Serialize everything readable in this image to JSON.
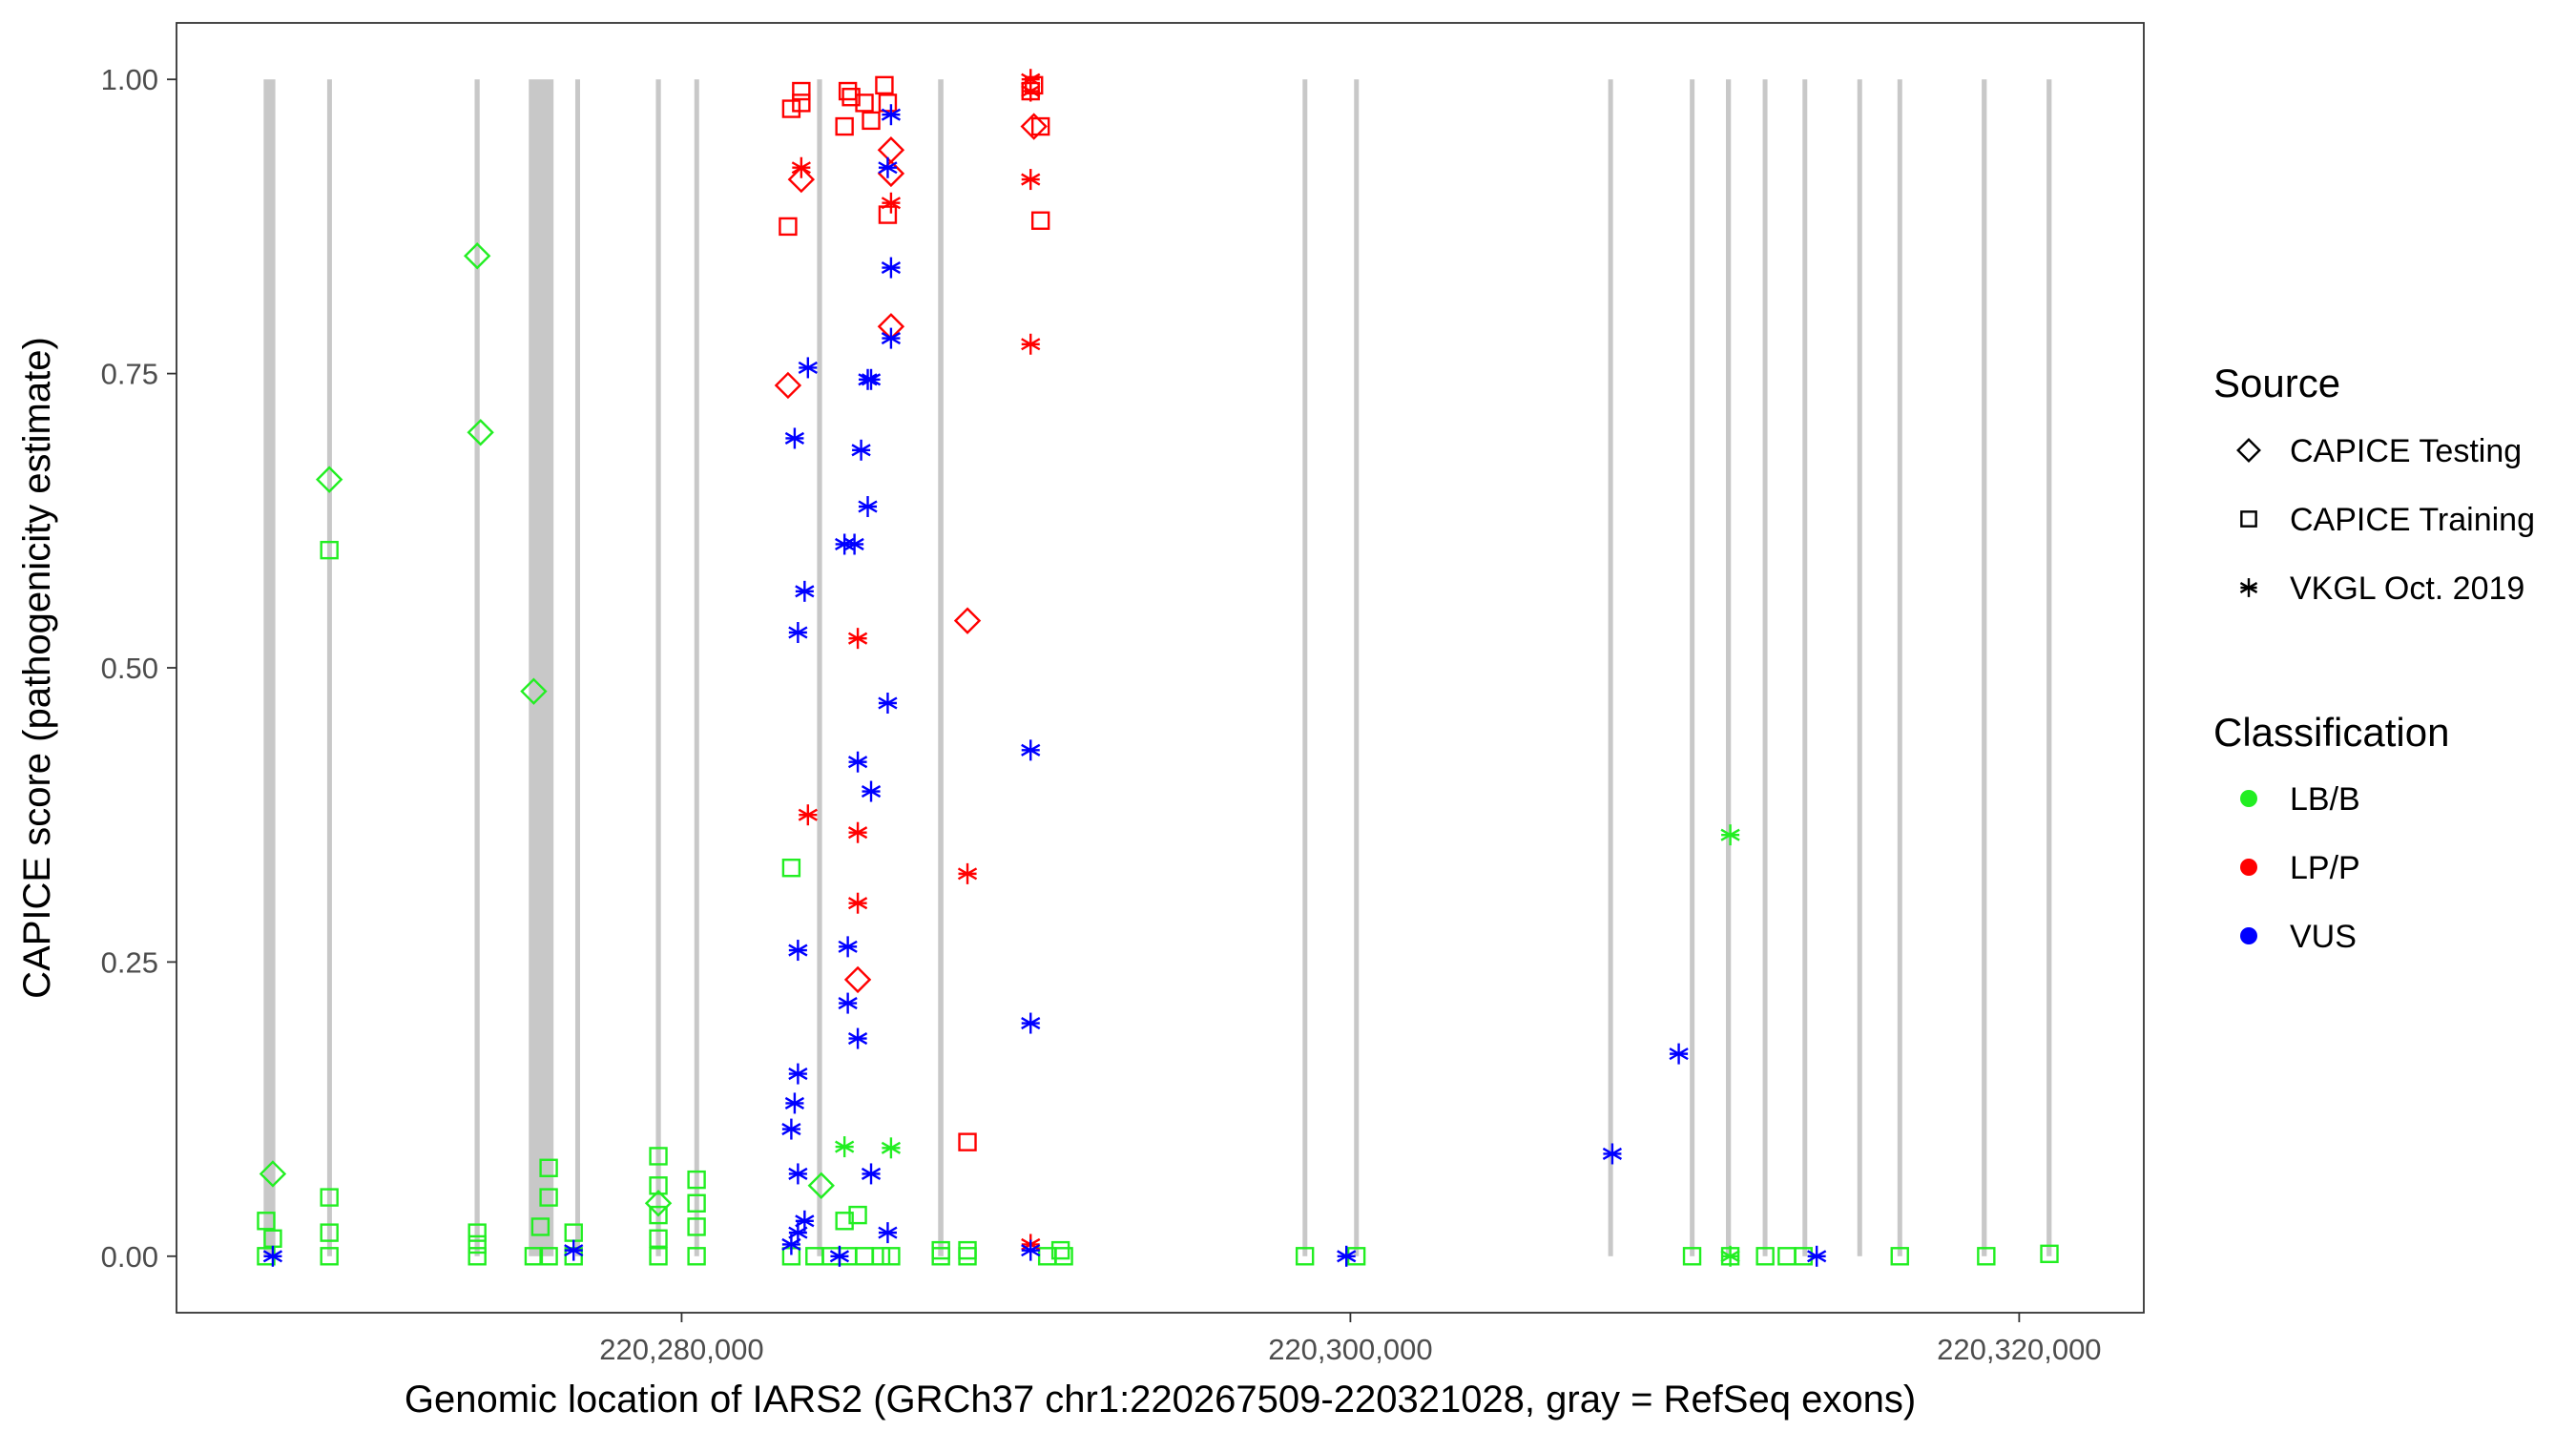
{
  "chart_data": {
    "type": "scatter",
    "xlabel": "Genomic location of IARS2 (GRCh37 chr1:220267509-220321028, gray = RefSeq exons)",
    "ylabel": "CAPICE score (pathogenicity estimate)",
    "xlim": [
      220264894,
      220323727
    ],
    "ylim": [
      -0.048,
      1.048
    ],
    "x_ticks": [
      220280000,
      220300000,
      220320000
    ],
    "x_tick_labels": [
      "220,280,000",
      "220,300,000",
      "220,320,000"
    ],
    "y_ticks": [
      0,
      0.25,
      0.5,
      0.75,
      1
    ],
    "y_tick_labels": [
      "0.00",
      "0.25",
      "0.50",
      "0.75",
      "1.00"
    ],
    "grid": false,
    "legend_placement": "right",
    "legend": {
      "source_title": "Source",
      "sources": [
        "CAPICE Testing",
        "CAPICE Training",
        "VKGL Oct. 2019"
      ],
      "source_shapes": [
        "diamond",
        "square",
        "asterisk"
      ],
      "class_title": "Classification",
      "classes": [
        "LB/B",
        "LP/P",
        "VUS"
      ],
      "class_colors": [
        "#22ee22",
        "#ff0000",
        "#0000ff"
      ]
    },
    "exon_color": "#c8c8c8",
    "exons": [
      [
        220267500,
        220267850
      ],
      [
        220269400,
        220269530
      ],
      [
        220273810,
        220273960
      ],
      [
        220275430,
        220276170
      ],
      [
        220276820,
        220276920
      ],
      [
        220279230,
        220279380
      ],
      [
        220280380,
        220280510
      ],
      [
        220284050,
        220284200
      ],
      [
        220287670,
        220287830
      ],
      [
        220298570,
        220298700
      ],
      [
        220300110,
        220300240
      ],
      [
        220307710,
        220307840
      ],
      [
        220310150,
        220310280
      ],
      [
        220311230,
        220311380
      ],
      [
        220312330,
        220312460
      ],
      [
        220313520,
        220313650
      ],
      [
        220315160,
        220315290
      ],
      [
        220316360,
        220316490
      ],
      [
        220318880,
        220319030
      ],
      [
        220320820,
        220320970
      ]
    ],
    "points_format": [
      "position",
      "score",
      "source_index",
      "class_index"
    ],
    "points": [
      [
        220267774,
        0.07,
        0,
        0
      ],
      [
        220269464,
        0.66,
        0,
        0
      ],
      [
        220273887,
        0.85,
        0,
        0
      ],
      [
        220273986,
        0.7,
        0,
        0
      ],
      [
        220275577,
        0.48,
        0,
        0
      ],
      [
        220279304,
        0.045,
        0,
        0
      ],
      [
        220284175,
        0.06,
        0,
        0
      ],
      [
        220283181,
        0.74,
        0,
        1
      ],
      [
        220283578,
        0.915,
        0,
        1
      ],
      [
        220286262,
        0.94,
        0,
        1
      ],
      [
        220286262,
        0.92,
        0,
        1
      ],
      [
        220286262,
        0.79,
        0,
        1
      ],
      [
        220285268,
        0.235,
        0,
        1
      ],
      [
        220288548,
        0.54,
        0,
        1
      ],
      [
        220290536,
        0.96,
        0,
        1
      ],
      [
        220267575,
        0.03,
        1,
        0
      ],
      [
        220267774,
        0.015,
        1,
        0
      ],
      [
        220269464,
        0.6,
        1,
        0
      ],
      [
        220269464,
        0.05,
        1,
        0
      ],
      [
        220269464,
        0.02,
        1,
        0
      ],
      [
        220273887,
        0.02,
        1,
        0
      ],
      [
        220273887,
        0.01,
        1,
        0
      ],
      [
        220276024,
        0.075,
        1,
        0
      ],
      [
        220276024,
        0.05,
        1,
        0
      ],
      [
        220275776,
        0.025,
        1,
        0
      ],
      [
        220276770,
        0.02,
        1,
        0
      ],
      [
        220279304,
        0.085,
        1,
        0
      ],
      [
        220279304,
        0.06,
        1,
        0
      ],
      [
        220279304,
        0.035,
        1,
        0
      ],
      [
        220279304,
        0.015,
        1,
        0
      ],
      [
        220280447,
        0.065,
        1,
        0
      ],
      [
        220280447,
        0.045,
        1,
        0
      ],
      [
        220280447,
        0.025,
        1,
        0
      ],
      [
        220283280,
        0.33,
        1,
        0
      ],
      [
        220284871,
        0.03,
        1,
        0
      ],
      [
        220285268,
        0.035,
        1,
        0
      ],
      [
        220287753,
        0.005,
        1,
        0
      ],
      [
        220288548,
        0.005,
        1,
        0
      ],
      [
        220291332,
        0.005,
        1,
        0
      ],
      [
        220298638,
        0,
        1,
        0
      ],
      [
        220300178,
        0,
        1,
        0
      ],
      [
        220310218,
        0,
        1,
        0
      ],
      [
        220312404,
        0,
        1,
        0
      ],
      [
        220313051,
        0,
        1,
        0
      ],
      [
        220316430,
        0,
        1,
        0
      ],
      [
        220319015,
        0,
        1,
        0
      ],
      [
        220320903,
        0.002,
        1,
        0
      ],
      [
        220267575,
        0,
        1,
        0
      ],
      [
        220269464,
        0,
        1,
        0
      ],
      [
        220273887,
        0,
        1,
        0
      ],
      [
        220275577,
        0,
        1,
        0
      ],
      [
        220276024,
        0,
        1,
        0
      ],
      [
        220276770,
        0,
        1,
        0
      ],
      [
        220279304,
        0,
        1,
        0
      ],
      [
        220280447,
        0,
        1,
        0
      ],
      [
        220283280,
        0,
        1,
        0
      ],
      [
        220283976,
        0,
        1,
        0
      ],
      [
        220284473,
        0,
        1,
        0
      ],
      [
        220284970,
        0,
        1,
        0
      ],
      [
        220285467,
        0,
        1,
        0
      ],
      [
        220285964,
        0,
        1,
        0
      ],
      [
        220286262,
        0,
        1,
        0
      ],
      [
        220287753,
        0,
        1,
        0
      ],
      [
        220288548,
        0,
        1,
        0
      ],
      [
        220290934,
        0,
        1,
        0
      ],
      [
        220291431,
        0,
        1,
        0
      ],
      [
        220311361,
        0,
        1,
        0
      ],
      [
        220313548,
        0,
        1,
        0
      ],
      [
        220283280,
        0.975,
        1,
        1
      ],
      [
        220283181,
        0.875,
        1,
        1
      ],
      [
        220283578,
        0.98,
        1,
        1
      ],
      [
        220283578,
        0.99,
        1,
        1
      ],
      [
        220284871,
        0.96,
        1,
        1
      ],
      [
        220284970,
        0.99,
        1,
        1
      ],
      [
        220285069,
        0.985,
        1,
        1
      ],
      [
        220285467,
        0.98,
        1,
        1
      ],
      [
        220285666,
        0.965,
        1,
        1
      ],
      [
        220286063,
        0.995,
        1,
        1
      ],
      [
        220286163,
        0.98,
        1,
        1
      ],
      [
        220286163,
        0.885,
        1,
        1
      ],
      [
        220288548,
        0.097,
        1,
        1
      ],
      [
        220290437,
        0.99,
        1,
        1
      ],
      [
        220290536,
        0.995,
        1,
        1
      ],
      [
        220290735,
        0.96,
        1,
        1
      ],
      [
        220290735,
        0.88,
        1,
        1
      ],
      [
        220283578,
        0.925,
        2,
        1
      ],
      [
        220283777,
        0.375,
        2,
        1
      ],
      [
        220285268,
        0.525,
        2,
        1
      ],
      [
        220285268,
        0.36,
        2,
        1
      ],
      [
        220285268,
        0.3,
        2,
        1
      ],
      [
        220286262,
        0.895,
        2,
        1
      ],
      [
        220288548,
        0.325,
        2,
        1
      ],
      [
        220290437,
        1.0,
        2,
        1
      ],
      [
        220290437,
        0.99,
        2,
        1
      ],
      [
        220290437,
        0.915,
        2,
        1
      ],
      [
        220290437,
        0.775,
        2,
        1
      ],
      [
        220290437,
        0.01,
        2,
        1
      ],
      [
        220267774,
        0,
        2,
        2
      ],
      [
        220276770,
        0.005,
        2,
        2
      ],
      [
        220283380,
        0.695,
        2,
        2
      ],
      [
        220283479,
        0.53,
        2,
        2
      ],
      [
        220283479,
        0.26,
        2,
        2
      ],
      [
        220283479,
        0.155,
        2,
        2
      ],
      [
        220283380,
        0.13,
        2,
        2
      ],
      [
        220283280,
        0.108,
        2,
        2
      ],
      [
        220283479,
        0.07,
        2,
        2
      ],
      [
        220283678,
        0.565,
        2,
        2
      ],
      [
        220283777,
        0.755,
        2,
        2
      ],
      [
        220283678,
        0.03,
        2,
        2
      ],
      [
        220283479,
        0.02,
        2,
        2
      ],
      [
        220283280,
        0.01,
        2,
        2
      ],
      [
        220284871,
        0.605,
        2,
        2
      ],
      [
        220285169,
        0.605,
        2,
        2
      ],
      [
        220285368,
        0.685,
        2,
        2
      ],
      [
        220285566,
        0.745,
        2,
        2
      ],
      [
        220285666,
        0.745,
        2,
        2
      ],
      [
        220285566,
        0.637,
        2,
        2
      ],
      [
        220286163,
        0.47,
        2,
        2
      ],
      [
        220285268,
        0.42,
        2,
        2
      ],
      [
        220285666,
        0.395,
        2,
        2
      ],
      [
        220284970,
        0.263,
        2,
        2
      ],
      [
        220284970,
        0.215,
        2,
        2
      ],
      [
        220285268,
        0.185,
        2,
        2
      ],
      [
        220285666,
        0.07,
        2,
        2
      ],
      [
        220286163,
        0.02,
        2,
        2
      ],
      [
        220286262,
        0.97,
        2,
        2
      ],
      [
        220286163,
        0.925,
        2,
        2
      ],
      [
        220286262,
        0.84,
        2,
        2
      ],
      [
        220286262,
        0.78,
        2,
        2
      ],
      [
        220290437,
        0.43,
        2,
        2
      ],
      [
        220290437,
        0.198,
        2,
        2
      ],
      [
        220290437,
        0.005,
        2,
        2
      ],
      [
        220284722,
        0,
        2,
        2
      ],
      [
        220299880,
        0,
        2,
        2
      ],
      [
        220307832,
        0.087,
        2,
        2
      ],
      [
        220309820,
        0.172,
        2,
        2
      ],
      [
        220313945,
        0,
        2,
        2
      ],
      [
        220284871,
        0.093,
        2,
        0
      ],
      [
        220286262,
        0.092,
        2,
        0
      ],
      [
        220311361,
        0.358,
        2,
        0
      ],
      [
        220311361,
        0,
        2,
        0
      ]
    ]
  }
}
